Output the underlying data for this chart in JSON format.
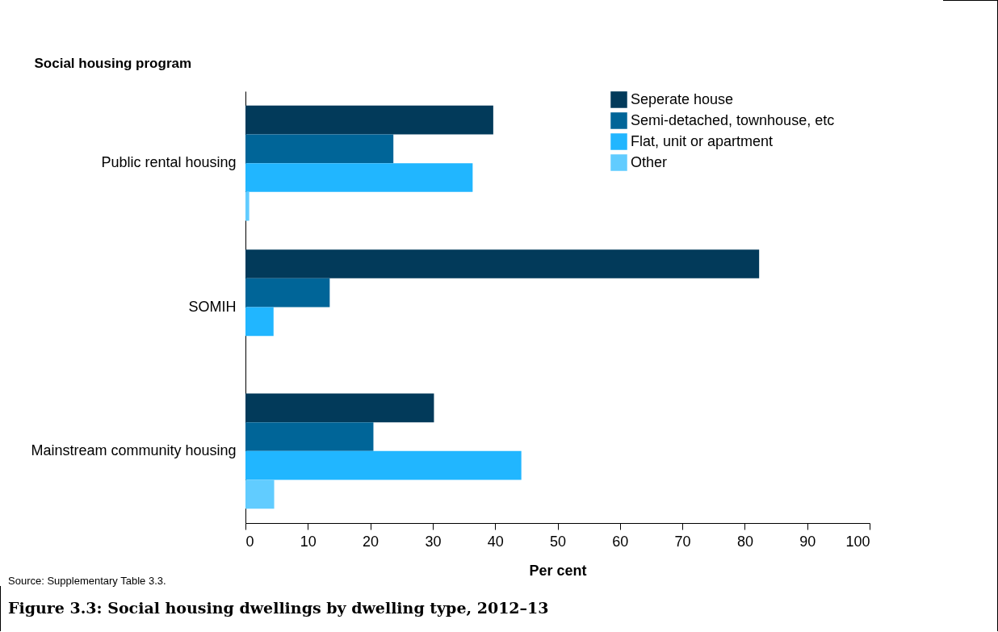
{
  "chart_data": {
    "type": "bar",
    "orientation": "horizontal",
    "title": "Figure 3.3: Social housing dwellings by dwelling type, 2012–13",
    "ylabel": "Social housing program",
    "xlabel": "Per cent",
    "categories": [
      "Public rental housing",
      "SOMIH",
      "Mainstream community housing"
    ],
    "series": [
      {
        "name": "Seperate house",
        "color": "#023a5a",
        "values": [
          39.7,
          82.3,
          30.2
        ]
      },
      {
        "name": "Semi-detached, townhouse, etc",
        "color": "#006598",
        "values": [
          23.7,
          13.5,
          20.5
        ]
      },
      {
        "name": "Flat, unit or apartment",
        "color": "#21b6ff",
        "values": [
          36.4,
          4.5,
          44.2
        ]
      },
      {
        "name": "Other",
        "color": "#61ccff",
        "values": [
          0.6,
          null,
          4.6
        ]
      }
    ],
    "xlim": [
      0,
      100
    ],
    "xticks": [
      0,
      10,
      20,
      30,
      40,
      50,
      60,
      70,
      80,
      90,
      100
    ],
    "legend": "top right",
    "annotations": [
      "Source: Supplementary Table 3.3."
    ]
  }
}
